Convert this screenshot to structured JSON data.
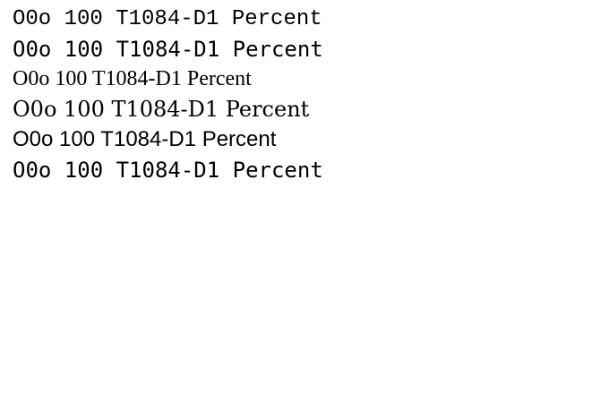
{
  "t": "O0o 100 T1084-D1 Percent"
}
